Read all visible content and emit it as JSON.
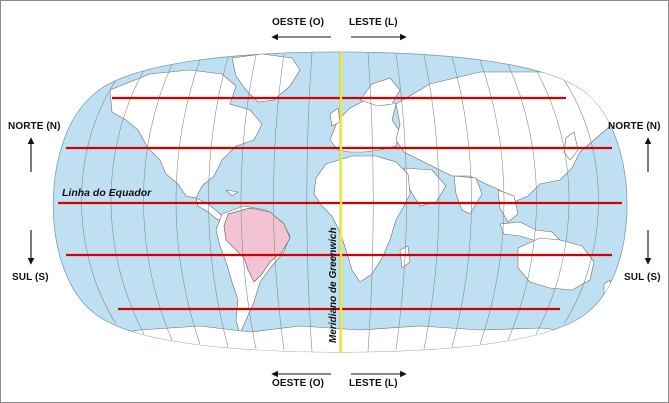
{
  "directions": {
    "west_label": "OESTE (O)",
    "east_label": "LESTE (L)",
    "north_label": "NORTE (N)",
    "south_label": "SUL (S)"
  },
  "lines": {
    "equator_label": "Linha do Equador",
    "greenwich_label": "Meridiano de Greenwich"
  },
  "colors": {
    "ocean": "#bfe0f2",
    "land": "#ffffff",
    "coast": "#6d6d6d",
    "graticule": "#8a8a8a",
    "parallels": "#d40000",
    "greenwich": "#f2ea22",
    "brazil": "#f3c3d3"
  },
  "highlight": {
    "country": "brazil-region"
  }
}
